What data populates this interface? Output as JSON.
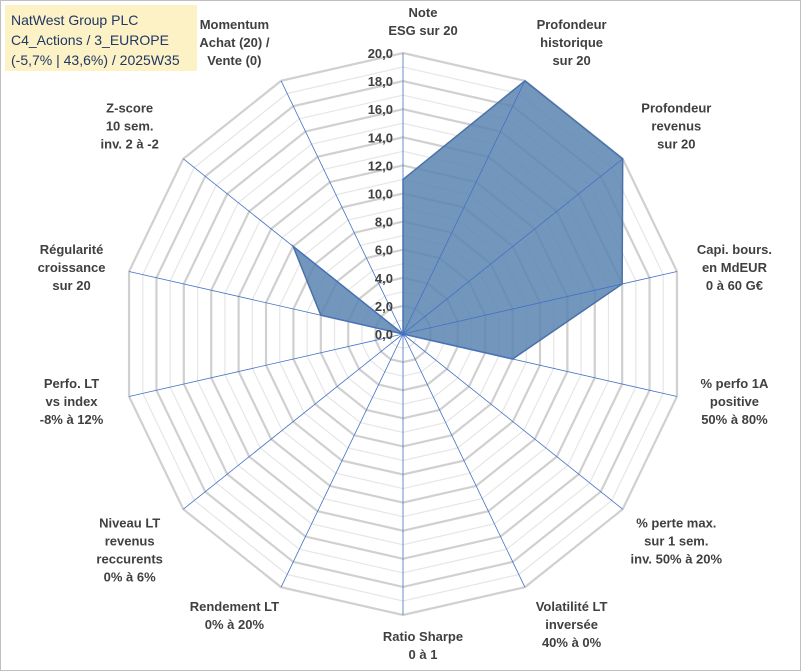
{
  "title_box": {
    "line1": "NatWest Group PLC",
    "line2": "C4_Actions / 3_EUROPE",
    "line3": "(-5,7% | 43,6%) / 2025W35"
  },
  "colors": {
    "grid": "#d9d9d9",
    "spokes": "#4472c4",
    "fill": "#5b84b1",
    "stroke": "#4a72a8",
    "title_bg": "#fdf1c6",
    "title_text": "#1f3864"
  },
  "chart_data": {
    "type": "radar",
    "rmin": 0,
    "rmax": 20,
    "tick_step": 2,
    "tick_labels": [
      "0,0",
      "2,0",
      "4,0",
      "6,0",
      "8,0",
      "10,0",
      "12,0",
      "14,0",
      "16,0",
      "18,0",
      "20,0"
    ],
    "axes": [
      [
        "Note",
        "ESG sur 20"
      ],
      [
        "Profondeur",
        "historique",
        "sur 20"
      ],
      [
        "Profondeur",
        "revenus",
        "sur 20"
      ],
      [
        "Capi. bours.",
        "en MdEUR",
        "0 à 60 G€"
      ],
      [
        "% perfo 1A",
        "positive",
        "50% à 80%"
      ],
      [
        "% perte max.",
        "sur 1 sem.",
        "inv. 50% à 20%"
      ],
      [
        "Volatilité LT",
        "inversée",
        "40% à 0%"
      ],
      [
        "Ratio Sharpe",
        "0 à 1"
      ],
      [
        "Rendement LT",
        "0% à 20%"
      ],
      [
        "Niveau LT",
        "revenus",
        "reccurents",
        "0% à 6%"
      ],
      [
        "Perfo. LT",
        "vs index",
        "-8% à 12%"
      ],
      [
        "Régularité",
        "croissance",
        "sur 20"
      ],
      [
        "Z-score",
        "10 sem.",
        "inv. 2 à -2"
      ],
      [
        "Momentum",
        "Achat (20) /",
        "Vente (0)"
      ]
    ],
    "values": [
      11,
      20,
      20,
      16,
      8,
      0,
      0,
      0,
      0,
      0,
      0,
      6,
      10,
      0
    ]
  }
}
